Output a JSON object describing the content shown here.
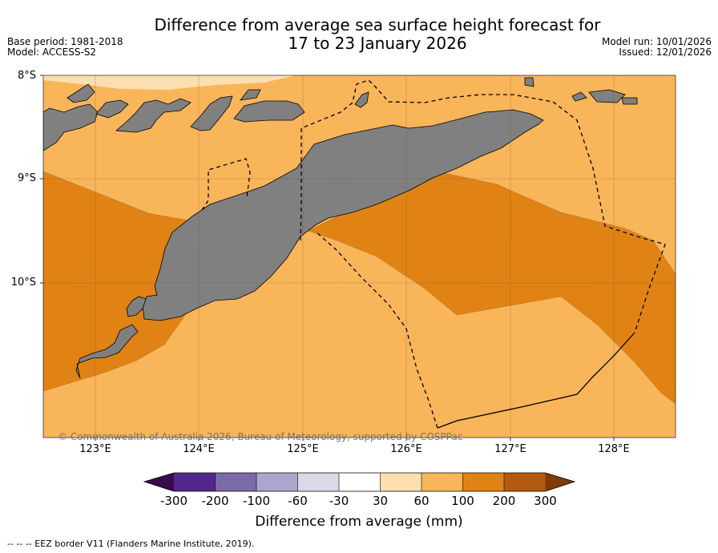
{
  "header": {
    "title_line1": "Difference from average sea surface height forecast for",
    "title_line2": "17 to 23 January 2026",
    "base_period": "Base period: 1981-2018",
    "model": "Model: ACCESS-S2",
    "model_run": "Model run: 10/01/2026",
    "issued": "Issued: 12/01/2026"
  },
  "map": {
    "lat_labels": [
      "8°S",
      "9°S",
      "10°S"
    ],
    "lon_labels": [
      "123°E",
      "124°E",
      "125°E",
      "126°E",
      "127°E",
      "128°E"
    ],
    "copyright": "© Commonwealth of Australia 2026, Bureau of Meteorology, supported by COSPPac",
    "colors": {
      "land": "#808080",
      "band_30_60": "#fddeb0",
      "band_60_100": "#f9b55a",
      "band_100_200": "#e08314"
    }
  },
  "colorbar": {
    "ticks": [
      "-300",
      "-200",
      "-100",
      "-60",
      "-30",
      "30",
      "60",
      "100",
      "200",
      "300"
    ],
    "colors": [
      "#3b0a4d",
      "#54278f",
      "#7b6aa9",
      "#aea5cf",
      "#d9d9ea",
      "#ffffff",
      "#fddeb0",
      "#f9b55a",
      "#e08314",
      "#b45a0c",
      "#7f3b08"
    ],
    "label": "Difference from average (mm)"
  },
  "footer": {
    "eez_note": "--  --  -- EEZ border V11 (Flanders Marine Institute, 2019)."
  }
}
